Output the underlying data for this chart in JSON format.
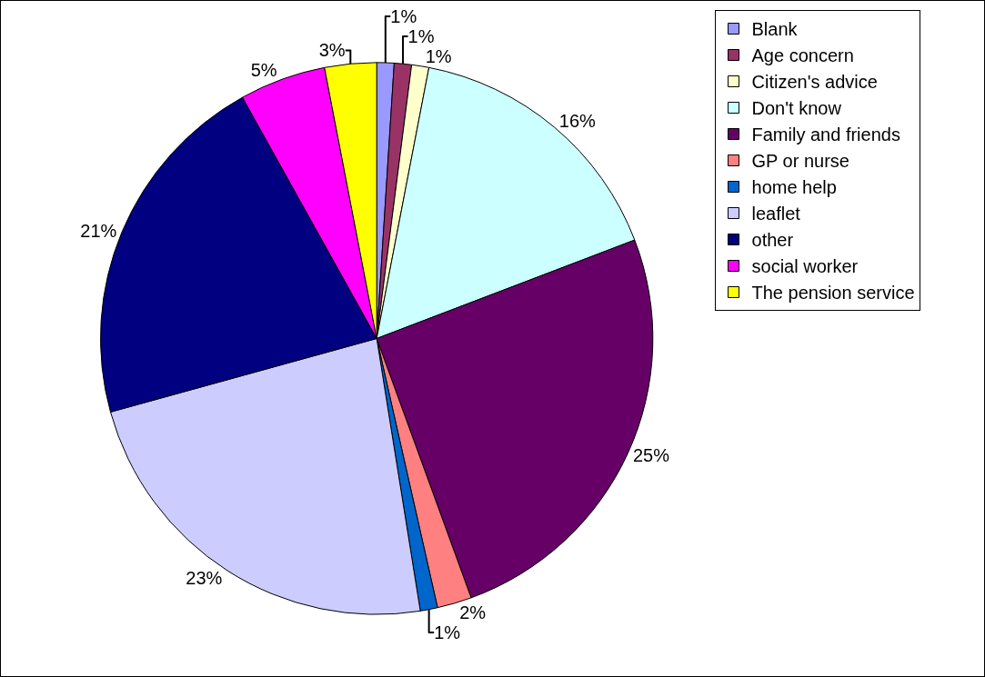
{
  "chart_data": {
    "type": "pie",
    "categories": [
      "Blank",
      "Age concern",
      "Citizen's advice",
      "Don't know",
      "Family and friends",
      "GP or nurse",
      "home help",
      "leaflet",
      "other",
      "social worker",
      "The pension service"
    ],
    "values": [
      1,
      1,
      1,
      16,
      25,
      2,
      1,
      23,
      21,
      5,
      3
    ],
    "value_labels": [
      "1%",
      "1%",
      "1%",
      "16%",
      "25%",
      "2%",
      "1%",
      "23%",
      "21%",
      "5%",
      "3%"
    ],
    "colors": [
      "#9999ff",
      "#993366",
      "#ffffcc",
      "#ccffff",
      "#660066",
      "#ff8080",
      "#0066cc",
      "#ccccff",
      "#000080",
      "#ff00ff",
      "#ffff00"
    ],
    "legend": "right"
  }
}
